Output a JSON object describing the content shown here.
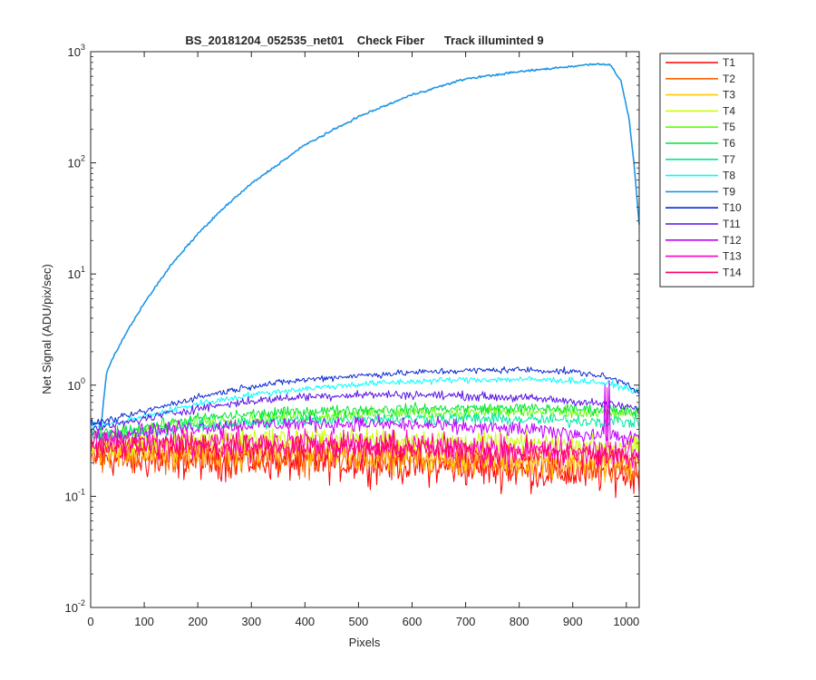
{
  "chart_data": {
    "type": "line",
    "title": "BS_20181204_052535_net01    Check Fiber      Track illuminted 9",
    "xlabel": "Pixels",
    "ylabel": "Net Signal (ADU/pix/sec)",
    "xlim": [
      0,
      1024
    ],
    "ylim": [
      0.01,
      1000
    ],
    "yscale": "log",
    "grid": false,
    "legend_position": "outside-top-right",
    "x_ticks": [
      "0",
      "100",
      "200",
      "300",
      "400",
      "500",
      "600",
      "700",
      "800",
      "900",
      "1000"
    ],
    "x_tick_values": [
      0,
      100,
      200,
      300,
      400,
      500,
      600,
      700,
      800,
      900,
      1000
    ],
    "y_ticks": [
      {
        "base": "10",
        "exp": "-2"
      },
      {
        "base": "10",
        "exp": "-1"
      },
      {
        "base": "10",
        "exp": "0"
      },
      {
        "base": "10",
        "exp": "1"
      },
      {
        "base": "10",
        "exp": "2"
      },
      {
        "base": "10",
        "exp": "3"
      }
    ],
    "y_tick_values": [
      0.01,
      0.1,
      1,
      10,
      100,
      1000
    ],
    "series": [
      {
        "name": "T1",
        "color": "#ff0000",
        "x": [
          0,
          50,
          100,
          200,
          300,
          400,
          500,
          600,
          700,
          800,
          900,
          1000,
          1024
        ],
        "values": [
          0.22,
          0.22,
          0.21,
          0.21,
          0.21,
          0.2,
          0.2,
          0.19,
          0.18,
          0.17,
          0.16,
          0.16,
          0.16
        ],
        "noise": 0.35
      },
      {
        "name": "T2",
        "color": "#ff5f00",
        "x": [
          0,
          50,
          100,
          200,
          300,
          400,
          500,
          600,
          700,
          800,
          900,
          1000,
          1024
        ],
        "values": [
          0.24,
          0.24,
          0.23,
          0.23,
          0.23,
          0.22,
          0.22,
          0.21,
          0.2,
          0.19,
          0.19,
          0.18,
          0.18
        ],
        "noise": 0.33
      },
      {
        "name": "T3",
        "color": "#ffc800",
        "x": [
          0,
          50,
          100,
          200,
          300,
          400,
          500,
          600,
          700,
          800,
          900,
          1000,
          1024
        ],
        "values": [
          0.26,
          0.26,
          0.25,
          0.25,
          0.25,
          0.25,
          0.24,
          0.23,
          0.22,
          0.22,
          0.21,
          0.2,
          0.2
        ],
        "noise": 0.3
      },
      {
        "name": "T4",
        "color": "#c8ff00",
        "x": [
          0,
          50,
          100,
          200,
          300,
          400,
          500,
          600,
          700,
          800,
          900,
          1000,
          1024
        ],
        "values": [
          0.28,
          0.29,
          0.3,
          0.32,
          0.33,
          0.33,
          0.33,
          0.32,
          0.31,
          0.3,
          0.29,
          0.28,
          0.28
        ],
        "noise": 0.2
      },
      {
        "name": "T5",
        "color": "#5fff00",
        "x": [
          0,
          50,
          100,
          200,
          300,
          400,
          500,
          600,
          700,
          800,
          900,
          1000,
          1024
        ],
        "values": [
          0.33,
          0.36,
          0.4,
          0.46,
          0.5,
          0.53,
          0.55,
          0.56,
          0.57,
          0.57,
          0.56,
          0.55,
          0.54
        ],
        "noise": 0.12
      },
      {
        "name": "T6",
        "color": "#00e632",
        "x": [
          0,
          50,
          100,
          200,
          300,
          400,
          500,
          600,
          700,
          800,
          900,
          1000,
          1024
        ],
        "values": [
          0.36,
          0.38,
          0.42,
          0.5,
          0.55,
          0.58,
          0.6,
          0.61,
          0.62,
          0.62,
          0.61,
          0.6,
          0.59
        ],
        "noise": 0.1
      },
      {
        "name": "T7",
        "color": "#00e6a0",
        "x": [
          0,
          50,
          100,
          200,
          300,
          400,
          500,
          600,
          700,
          800,
          900,
          1000,
          1024
        ],
        "values": [
          0.33,
          0.35,
          0.38,
          0.43,
          0.46,
          0.48,
          0.5,
          0.5,
          0.5,
          0.49,
          0.48,
          0.47,
          0.46
        ],
        "noise": 0.12
      },
      {
        "name": "T8",
        "color": "#00ffff",
        "x": [
          0,
          50,
          100,
          200,
          300,
          400,
          500,
          600,
          700,
          800,
          900,
          950,
          1000,
          1024
        ],
        "values": [
          0.42,
          0.46,
          0.52,
          0.68,
          0.82,
          0.93,
          1.02,
          1.08,
          1.12,
          1.13,
          1.1,
          1.06,
          0.95,
          0.85
        ],
        "noise": 0.06
      },
      {
        "name": "T9",
        "color": "#1e96e6",
        "x": [
          0,
          20,
          25,
          30,
          40,
          60,
          80,
          100,
          150,
          200,
          250,
          300,
          400,
          500,
          600,
          700,
          800,
          900,
          950,
          970,
          990,
          1005,
          1015,
          1024
        ],
        "values": [
          0.45,
          0.45,
          0.8,
          1.3,
          1.7,
          2.6,
          3.8,
          5.5,
          12,
          23,
          40,
          65,
          145,
          260,
          410,
          570,
          660,
          740,
          780,
          760,
          550,
          250,
          90,
          28
        ],
        "noise": 0.02
      },
      {
        "name": "T10",
        "color": "#0a28d2",
        "x": [
          0,
          50,
          100,
          200,
          300,
          400,
          500,
          600,
          700,
          800,
          900,
          950,
          1000,
          1024
        ],
        "values": [
          0.45,
          0.5,
          0.58,
          0.78,
          0.98,
          1.12,
          1.22,
          1.3,
          1.35,
          1.38,
          1.32,
          1.22,
          1.05,
          0.85
        ],
        "noise": 0.06
      },
      {
        "name": "T11",
        "color": "#5a14e6",
        "x": [
          0,
          50,
          100,
          200,
          300,
          400,
          500,
          600,
          700,
          800,
          900,
          1000,
          1024
        ],
        "values": [
          0.4,
          0.44,
          0.5,
          0.62,
          0.72,
          0.79,
          0.82,
          0.82,
          0.8,
          0.77,
          0.72,
          0.64,
          0.6
        ],
        "noise": 0.08
      },
      {
        "name": "T12",
        "color": "#be00ff",
        "x": [
          0,
          50,
          100,
          200,
          300,
          400,
          500,
          600,
          700,
          800,
          900,
          1000,
          1024
        ],
        "values": [
          0.35,
          0.37,
          0.39,
          0.42,
          0.44,
          0.45,
          0.45,
          0.44,
          0.42,
          0.4,
          0.37,
          0.34,
          0.33
        ],
        "noise": 0.14
      },
      {
        "name": "T13",
        "color": "#ff00c8",
        "x": [
          0,
          50,
          100,
          200,
          300,
          400,
          500,
          600,
          700,
          800,
          900,
          1000,
          1024
        ],
        "values": [
          0.3,
          0.31,
          0.31,
          0.31,
          0.31,
          0.3,
          0.29,
          0.28,
          0.27,
          0.26,
          0.25,
          0.24,
          0.24
        ],
        "noise": 0.26
      },
      {
        "name": "T14",
        "color": "#ff0064",
        "x": [
          0,
          50,
          100,
          200,
          300,
          400,
          500,
          600,
          700,
          800,
          900,
          1000,
          1024
        ],
        "values": [
          0.28,
          0.29,
          0.28,
          0.28,
          0.28,
          0.28,
          0.27,
          0.27,
          0.26,
          0.25,
          0.24,
          0.23,
          0.23
        ],
        "noise": 0.28
      }
    ],
    "spikes": [
      {
        "series": "T12",
        "x": 960,
        "value": 1.0
      },
      {
        "series": "T12",
        "x": 968,
        "value": 1.1
      },
      {
        "series": "T13",
        "x": 964,
        "value": 0.95
      }
    ]
  }
}
